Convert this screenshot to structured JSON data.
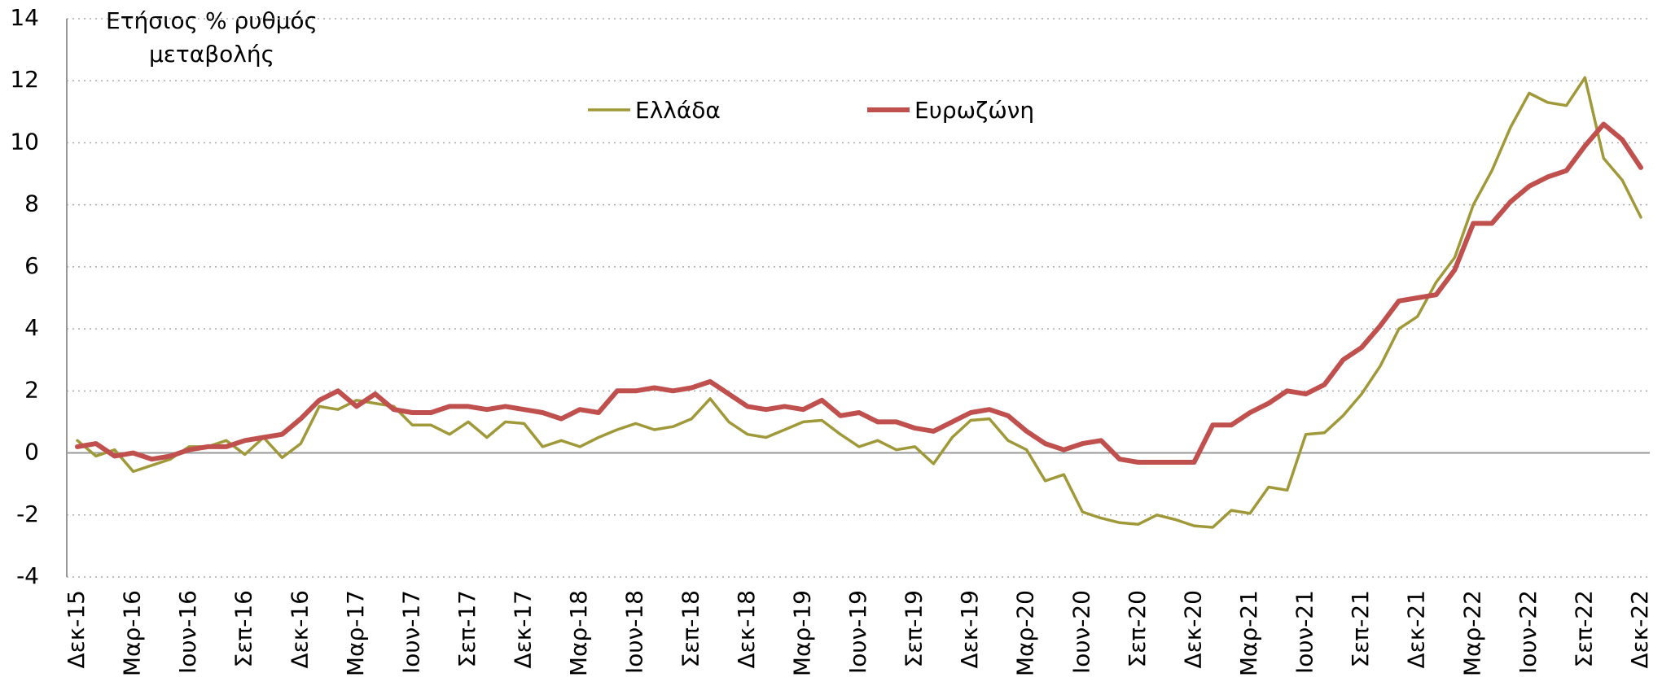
{
  "chart_data": {
    "type": "line",
    "ylabel_lines": [
      "Ετήσιος % ρυθμός",
      "μεταβολής"
    ],
    "categories": [
      "Δεκ-15",
      null,
      null,
      "Μαρ-16",
      null,
      null,
      "Ιουν-16",
      null,
      null,
      "Σεπ-16",
      null,
      null,
      "Δεκ-16",
      null,
      null,
      "Μαρ-17",
      null,
      null,
      "Ιουν-17",
      null,
      null,
      "Σεπ-17",
      null,
      null,
      "Δεκ-17",
      null,
      null,
      "Μαρ-18",
      null,
      null,
      "Ιουν-18",
      null,
      null,
      "Σεπ-18",
      null,
      null,
      "Δεκ-18",
      null,
      null,
      "Μαρ-19",
      null,
      null,
      "Ιουν-19",
      null,
      null,
      "Σεπ-19",
      null,
      null,
      "Δεκ-19",
      null,
      null,
      "Μαρ-20",
      null,
      null,
      "Ιουν-20",
      null,
      null,
      "Σεπ-20",
      null,
      null,
      "Δεκ-20",
      null,
      null,
      "Μαρ-21",
      null,
      null,
      "Ιουν-21",
      null,
      null,
      "Σεπ-21",
      null,
      null,
      "Δεκ-21",
      null,
      null,
      "Μαρ-22",
      null,
      null,
      "Ιουν-22",
      null,
      null,
      "Σεπ-22",
      null,
      null,
      "Δεκ-22"
    ],
    "series": [
      {
        "name": "Ελλάδα",
        "color": "#a0993a",
        "width": 3.5,
        "values": [
          0.4,
          -0.1,
          0.1,
          -0.6,
          -0.4,
          -0.2,
          0.2,
          0.2,
          0.4,
          -0.05,
          0.5,
          -0.15,
          0.3,
          1.5,
          1.4,
          1.7,
          1.6,
          1.5,
          0.9,
          0.9,
          0.6,
          1.0,
          0.5,
          1.0,
          0.95,
          0.2,
          0.4,
          0.2,
          0.5,
          0.75,
          0.95,
          0.75,
          0.85,
          1.1,
          1.75,
          1.0,
          0.6,
          0.5,
          0.75,
          1.0,
          1.05,
          0.6,
          0.2,
          0.4,
          0.1,
          0.2,
          -0.35,
          0.5,
          1.05,
          1.1,
          0.4,
          0.1,
          -0.9,
          -0.7,
          -1.9,
          -2.1,
          -2.25,
          -2.3,
          -2.0,
          -2.15,
          -2.35,
          -2.4,
          -1.85,
          -1.95,
          -1.1,
          -1.2,
          0.6,
          0.65,
          1.2,
          1.9,
          2.8,
          4.0,
          4.4,
          5.5,
          6.3,
          8.0,
          9.1,
          10.5,
          11.6,
          11.3,
          11.2,
          12.1,
          9.5,
          8.8,
          7.6
        ]
      },
      {
        "name": "Ευρωζώνη",
        "color": "#c0504d",
        "width": 6,
        "values": [
          0.2,
          0.3,
          -0.1,
          0.0,
          -0.2,
          -0.1,
          0.1,
          0.2,
          0.2,
          0.4,
          0.5,
          0.6,
          1.1,
          1.7,
          2.0,
          1.5,
          1.9,
          1.4,
          1.3,
          1.3,
          1.5,
          1.5,
          1.4,
          1.5,
          1.4,
          1.3,
          1.1,
          1.4,
          1.3,
          2.0,
          2.0,
          2.1,
          2.0,
          2.1,
          2.3,
          1.9,
          1.5,
          1.4,
          1.5,
          1.4,
          1.7,
          1.2,
          1.3,
          1.0,
          1.0,
          0.8,
          0.7,
          1.0,
          1.3,
          1.4,
          1.2,
          0.7,
          0.3,
          0.1,
          0.3,
          0.4,
          -0.2,
          -0.3,
          -0.3,
          -0.3,
          -0.3,
          0.9,
          0.9,
          1.3,
          1.6,
          2.0,
          1.9,
          2.2,
          3.0,
          3.4,
          4.1,
          4.9,
          5.0,
          5.1,
          5.9,
          7.4,
          7.4,
          8.1,
          8.6,
          8.9,
          9.1,
          9.9,
          10.6,
          10.1,
          9.2
        ]
      }
    ],
    "ylim": [
      -4,
      14
    ],
    "yticks": [
      -4,
      -2,
      0,
      2,
      4,
      6,
      8,
      10,
      12,
      14
    ],
    "grid": true
  }
}
